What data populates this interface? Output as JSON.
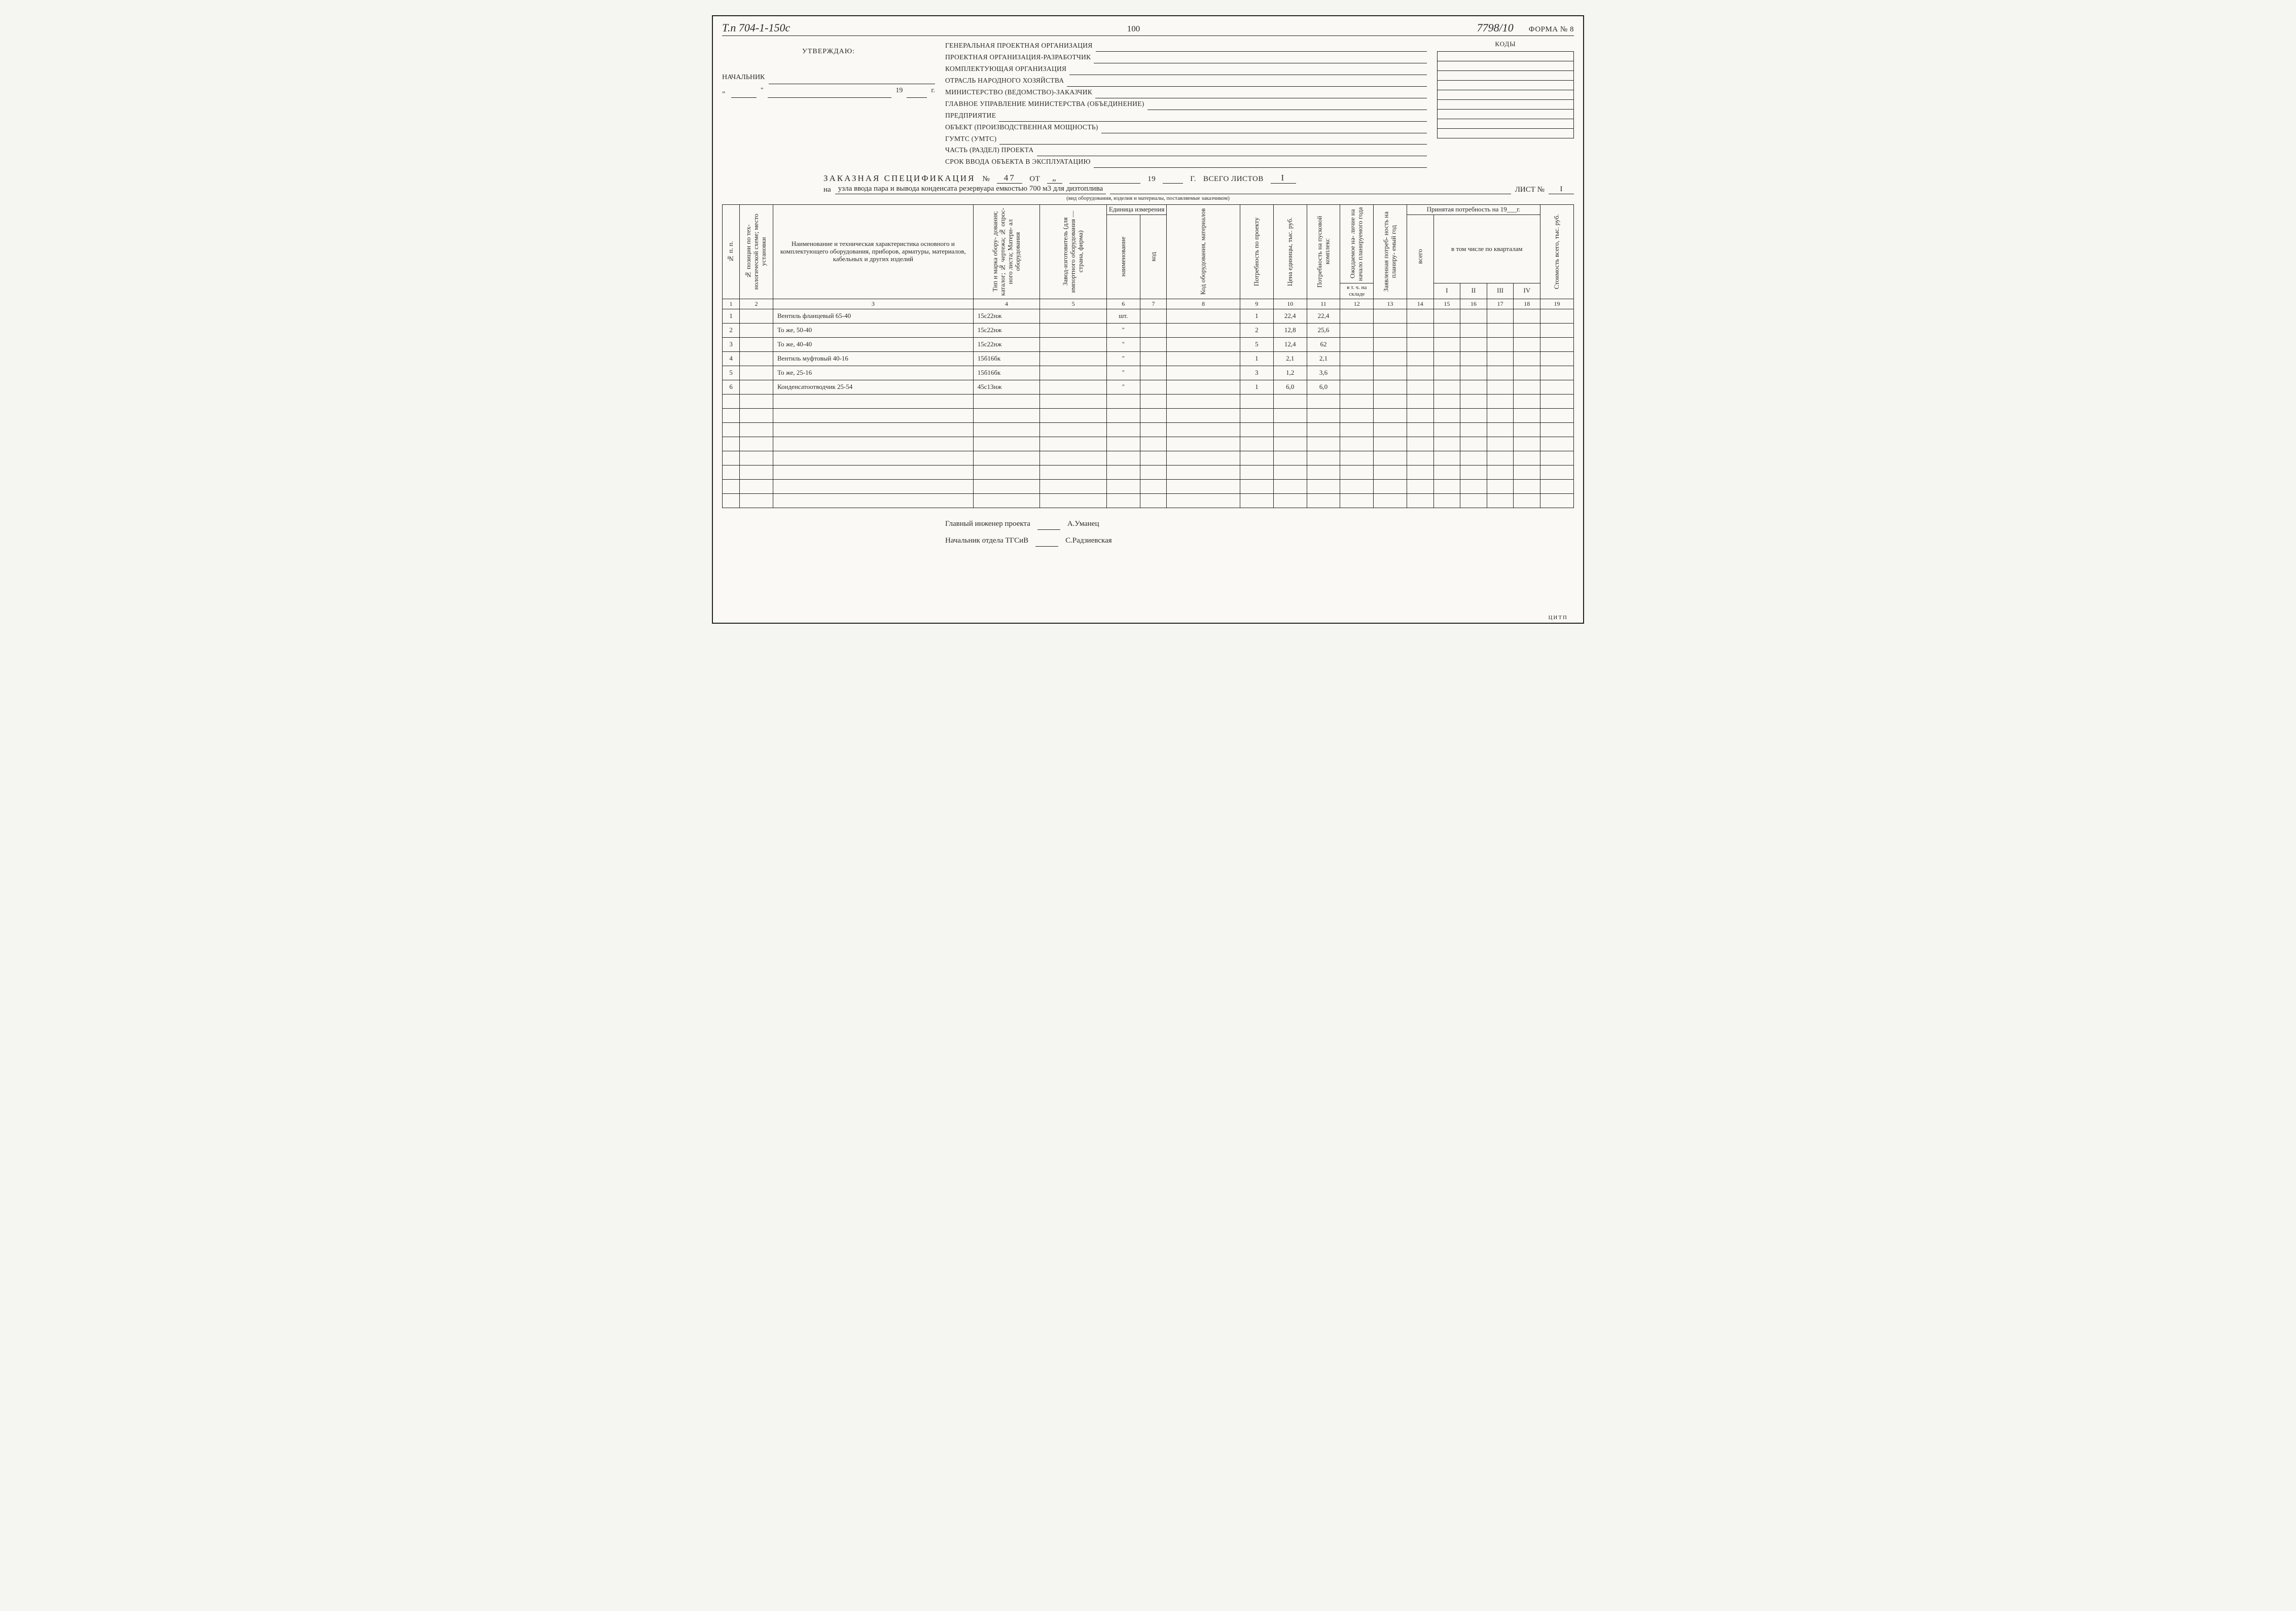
{
  "header": {
    "left_code": "Т.п 704-1-150с",
    "page_number": "100",
    "doc_number": "7798/10",
    "form_label": "ФОРМА № 8"
  },
  "approval": {
    "utverzhdayu": "УТВЕРЖДАЮ:",
    "nachalnik": "НАЧАЛЬНИК",
    "year_prefix": "19",
    "year_suffix": "г."
  },
  "codes_header": "КОДЫ",
  "org_lines": [
    "ГЕНЕРАЛЬНАЯ ПРОЕКТНАЯ ОРГАНИЗАЦИЯ",
    "ПРОЕКТНАЯ ОРГАНИЗАЦИЯ-РАЗРАБОТЧИК",
    "КОМПЛЕКТУЮЩАЯ ОРГАНИЗАЦИЯ",
    "ОТРАСЛЬ НАРОДНОГО ХОЗЯЙСТВА",
    "МИНИСТЕРСТВО (ВЕДОМСТВО)-ЗАКАЗЧИК",
    "ГЛАВНОЕ УПРАВЛЕНИЕ МИНИСТЕРСТВА (ОБЪЕДИНЕНИЕ)",
    "ПРЕДПРИЯТИЕ",
    "ОБЪЕКТ (ПРОИЗВОДСТВЕННАЯ МОЩНОСТЬ)",
    "ГУМТС (УМТС)",
    "ЧАСТЬ (РАЗДЕЛ) ПРОЕКТА",
    "СРОК ВВОДА ОБЪЕКТА В ЭКСПЛУАТАЦИЮ"
  ],
  "spec_title": {
    "title": "ЗАКАЗНАЯ СПЕЦИФИКАЦИЯ",
    "no_label": "№",
    "no": "47",
    "ot": "ОТ",
    "ot_quote": "„",
    "year_prefix": "19",
    "year_g": "Г.",
    "vsego": "ВСЕГО ЛИСТОВ",
    "vsego_n": "I",
    "na": "на",
    "description": "узла ввода пара и вывода конденсата резервуара емкостью 700 м3 для дизтоплива",
    "list_label": "ЛИСТ №",
    "list_n": "I",
    "subnote": "(вид оборудования, изделия и материалы, поставляемые заказчиком)"
  },
  "columns_vertical": {
    "c1": "№ п. п.",
    "c2": "№ позиции по тех- нологической схеме; место установки",
    "c3": "Наименование и техническая характеристика основного и комплектующего оборудования, приборов, арматуры, материалов, кабельных и других изделий",
    "c4": "Тип и марка обору- дования; каталог; № чертежа; № опрос- ного листа; Матери- ал оборудования",
    "c5": "Завод-изготовитель (для импортного оборудования —страна, фирма)",
    "c6_group": "Единица измерения",
    "c6": "наименование",
    "c7": "код",
    "c8": "Код оборудования, материалов",
    "c9": "Потребность по проекту",
    "c10": "Цена единицы, тыс. руб.",
    "c11": "Потребность на пусковой комплекс",
    "c12a": "Ожидаемое на- личие на начало планируемого года",
    "c12b": "в т. ч. на складе",
    "c13": "Заявленная потреб- ность на планиру- емый год",
    "c14_group": "Принятая потребность на 19___г.",
    "c14_sub": "в том числе по кварталам",
    "c14": "всего",
    "c15": "I",
    "c16": "II",
    "c17": "III",
    "c18": "IV",
    "c19": "Стоимость всего, тыс. руб."
  },
  "colnums": [
    "1",
    "2",
    "3",
    "4",
    "5",
    "6",
    "7",
    "8",
    "9",
    "10",
    "11",
    "12",
    "13",
    "14",
    "15",
    "16",
    "17",
    "18",
    "19"
  ],
  "rows": [
    {
      "n": "1",
      "name": "Вентиль фланцевый 65-40",
      "type": "15с22нж",
      "unit": "шт.",
      "q": "1",
      "price": "22,4",
      "pk": "22,4"
    },
    {
      "n": "2",
      "name": "То же, 50-40",
      "type": "15с22нж",
      "unit": "\"",
      "q": "2",
      "price": "12,8",
      "pk": "25,6"
    },
    {
      "n": "3",
      "name": "То же, 40-40",
      "type": "15с22нж",
      "unit": "\"",
      "q": "5",
      "price": "12,4",
      "pk": "62"
    },
    {
      "n": "4",
      "name": "Вентиль муфтовый 40-16",
      "type": "15б16бк",
      "unit": "\"",
      "q": "1",
      "price": "2,1",
      "pk": "2,1"
    },
    {
      "n": "5",
      "name": "То же, 25-16",
      "type": "15б16бк",
      "unit": "\"",
      "q": "3",
      "price": "1,2",
      "pk": "3,6"
    },
    {
      "n": "6",
      "name": "Конденсатоотводчик 25-54",
      "type": "45с13нж",
      "unit": "\"",
      "q": "1",
      "price": "6,0",
      "pk": "6,0"
    }
  ],
  "signatures": {
    "line1_role": "Главный инженер проекта",
    "line1_name": "А.Уманец",
    "line2_role": "Начальник отдела ТГСиВ",
    "line2_name": "С.Радзиевская"
  },
  "footer": "ЦИТП"
}
